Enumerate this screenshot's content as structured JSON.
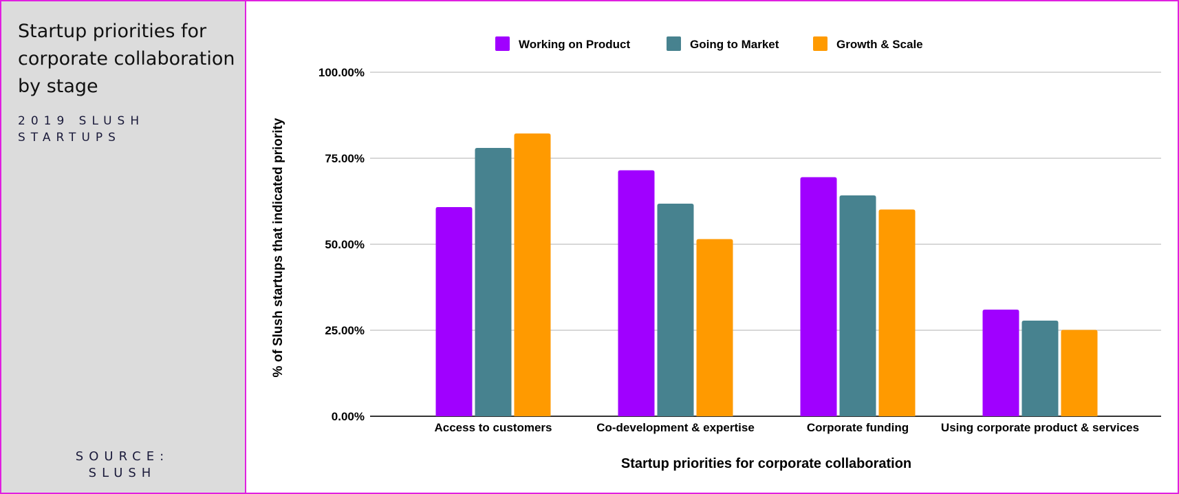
{
  "sidebar": {
    "title": "Startup priorities for corporate collaboration by stage",
    "subtitle_line1": "2019 SLUSH",
    "subtitle_line2": "STARTUPS",
    "source_line1": "SOURCE:",
    "source_line2": "SLUSH"
  },
  "chart_data": {
    "type": "bar",
    "title": "",
    "xlabel": "Startup priorities for corporate collaboration",
    "ylabel": "% of Slush startups that indicated priority",
    "categories": [
      "Access to customers",
      "Co-development & expertise",
      "Corporate funding",
      "Using corporate product & services"
    ],
    "series": [
      {
        "name": "Working on Product",
        "color": "#a000ff",
        "values": [
          60.8,
          71.5,
          69.5,
          31.0
        ]
      },
      {
        "name": "Going to Market",
        "color": "#47828f",
        "values": [
          78.0,
          61.8,
          64.2,
          27.8
        ]
      },
      {
        "name": "Growth & Scale",
        "color": "#ff9a00",
        "values": [
          82.2,
          51.5,
          60.1,
          25.1
        ]
      }
    ],
    "ylim": [
      0,
      100
    ],
    "yticks": [
      "0.00%",
      "25.00%",
      "50.00%",
      "75.00%",
      "100.00%"
    ],
    "ytick_values": [
      0,
      25,
      50,
      75,
      100
    ],
    "grid": true,
    "legend": "top"
  }
}
